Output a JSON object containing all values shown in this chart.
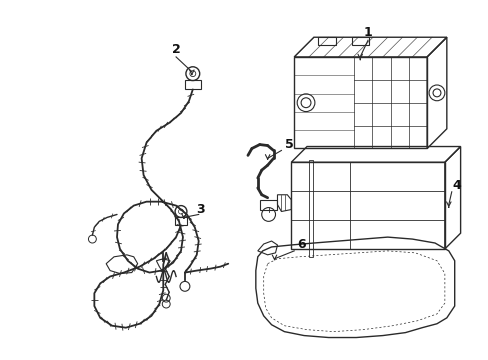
{
  "background_color": "#ffffff",
  "line_color": "#2a2a2a",
  "label_color": "#111111",
  "figsize": [
    4.89,
    3.6
  ],
  "dpi": 100,
  "xlim": [
    0,
    489
  ],
  "ylim": [
    0,
    360
  ]
}
